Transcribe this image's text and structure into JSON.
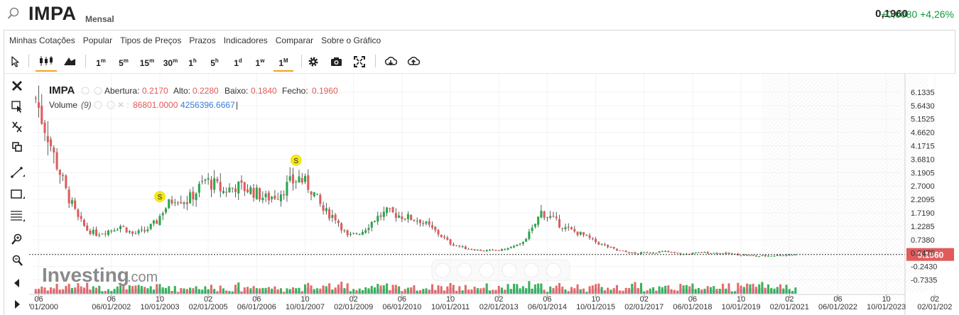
{
  "header": {
    "symbol": "IMPA",
    "period": "Mensal",
    "price": "0,1960",
    "change": "+0,0080",
    "change_pct": "+4,26%",
    "change_color": "#0a9c3a"
  },
  "menu": [
    "Minhas Cotações",
    "Popular",
    "Tipos de Preços",
    "Prazos",
    "Indicadores",
    "Comparar",
    "Sobre o Gráfico"
  ],
  "toolbar": {
    "cursor_icon": "cursor-arrow-icon",
    "chart_type_icons": [
      "candlestick-icon",
      "area-chart-icon"
    ],
    "intervals": [
      {
        "label": "1",
        "sup": "m"
      },
      {
        "label": "5",
        "sup": "m"
      },
      {
        "label": "15",
        "sup": "m"
      },
      {
        "label": "30",
        "sup": "m"
      },
      {
        "label": "1",
        "sup": "h"
      },
      {
        "label": "5",
        "sup": "h"
      },
      {
        "label": "1",
        "sup": "d"
      },
      {
        "label": "1",
        "sup": "w"
      },
      {
        "label": "1",
        "sup": "M"
      }
    ],
    "active_interval": "1M",
    "tool_icons": [
      "gear-icon",
      "camera-icon",
      "fullscreen-icon",
      "download-icon",
      "upload-icon"
    ]
  },
  "sidebar_icons": [
    "close-icon",
    "crosshair-icon",
    "zoom-out-icon",
    "copy-icon",
    "line-tool-icon",
    "rectangle-icon",
    "fib-lines-icon",
    "zoom-in-icon",
    "magnifier-icon",
    "arrow-left-icon",
    "arrow-right-icon"
  ],
  "legend": {
    "symbol": "IMPA",
    "open_label": "Abertura:",
    "open": "0.2170",
    "high_label": "Alto:",
    "high": "0.2280",
    "low_label": "Baixo:",
    "low": "0.1840",
    "close_label": "Fecho:",
    "close": "0.1960",
    "volume_label": "Volume",
    "volume_param": "(9)",
    "volume_value": "86801.0000",
    "volume_ma": "4256396.6667"
  },
  "watermark": {
    "brand": "Investing",
    "suffix": ".com"
  },
  "colors": {
    "up": "#27a84a",
    "down": "#e15b5b",
    "label_bg": "#e15b5b",
    "volume_ma_fill": "#a9c9ec",
    "accent": "#f2a21b"
  },
  "chart_data": {
    "type": "candlestick",
    "interval": "monthly",
    "current_price": 0.196,
    "current_price_label": "0.1960",
    "y_ticks": [
      "6.1335",
      "5.6430",
      "5.1525",
      "4.6620",
      "4.1715",
      "3.6810",
      "3.1905",
      "2.7000",
      "2.2095",
      "1.7190",
      "1.2285",
      "0.7380",
      "0.2475",
      "-0.2430",
      "-0.7335"
    ],
    "ylim": [
      -0.98,
      6.34
    ],
    "x_ticks": [
      {
        "top": "06",
        "bottom": "06/01/2000"
      },
      {
        "top": "06",
        "bottom": "06/01/2002"
      },
      {
        "top": "10",
        "bottom": "10/01/2003"
      },
      {
        "top": "02",
        "bottom": "02/01/2005"
      },
      {
        "top": "06",
        "bottom": "06/01/2006"
      },
      {
        "top": "10",
        "bottom": "10/01/2007"
      },
      {
        "top": "02",
        "bottom": "02/01/2009"
      },
      {
        "top": "06",
        "bottom": "06/01/2010"
      },
      {
        "top": "10",
        "bottom": "10/01/2011"
      },
      {
        "top": "02",
        "bottom": "02/01/2013"
      },
      {
        "top": "06",
        "bottom": "06/01/2014"
      },
      {
        "top": "10",
        "bottom": "10/01/2015"
      },
      {
        "top": "02",
        "bottom": "02/01/2017"
      },
      {
        "top": "06",
        "bottom": "06/01/2018"
      },
      {
        "top": "10",
        "bottom": "10/01/2019"
      },
      {
        "top": "02",
        "bottom": "02/01/2021"
      },
      {
        "top": "06",
        "bottom": "06/01/2022"
      },
      {
        "top": "10",
        "bottom": "10/01/2023"
      },
      {
        "top": "02",
        "bottom": "02/01/202"
      }
    ],
    "xlim": [
      "2000-04",
      "2024-03"
    ],
    "last_data_date": "2021-04",
    "events": [
      {
        "label": "S",
        "date": "2003-10"
      },
      {
        "label": "S",
        "date": "2007-07"
      }
    ],
    "close_path": [
      [
        "2000-05",
        5.9
      ],
      [
        "2000-07",
        5.2
      ],
      [
        "2000-09",
        4.6
      ],
      [
        "2000-11",
        3.8
      ],
      [
        "2001-01",
        3.2
      ],
      [
        "2001-03",
        2.5
      ],
      [
        "2001-05",
        2.0
      ],
      [
        "2001-07",
        1.5
      ],
      [
        "2001-10",
        1.1
      ],
      [
        "2002-01",
        0.95
      ],
      [
        "2002-06",
        1.1
      ],
      [
        "2002-09",
        1.25
      ],
      [
        "2003-01",
        0.95
      ],
      [
        "2003-05",
        1.05
      ],
      [
        "2003-09",
        1.4
      ],
      [
        "2003-11",
        1.8
      ],
      [
        "2004-03",
        2.3
      ],
      [
        "2004-07",
        2.15
      ],
      [
        "2004-10",
        2.5
      ],
      [
        "2005-01",
        2.9
      ],
      [
        "2005-04",
        2.75
      ],
      [
        "2005-07",
        2.5
      ],
      [
        "2005-11",
        2.7
      ],
      [
        "2006-04",
        2.55
      ],
      [
        "2006-09",
        2.25
      ],
      [
        "2007-01",
        2.4
      ],
      [
        "2007-05",
        2.8
      ],
      [
        "2007-08",
        3.0
      ],
      [
        "2007-12",
        2.6
      ],
      [
        "2008-04",
        1.8
      ],
      [
        "2008-08",
        1.55
      ],
      [
        "2008-12",
        0.85
      ],
      [
        "2009-05",
        1.05
      ],
      [
        "2009-09",
        1.5
      ],
      [
        "2010-01",
        1.75
      ],
      [
        "2010-06",
        1.6
      ],
      [
        "2010-12",
        1.45
      ],
      [
        "2011-05",
        1.05
      ],
      [
        "2011-10",
        0.6
      ],
      [
        "2012-03",
        0.42
      ],
      [
        "2012-09",
        0.33
      ],
      [
        "2013-03",
        0.36
      ],
      [
        "2013-09",
        0.55
      ],
      [
        "2014-01",
        1.1
      ],
      [
        "2014-04",
        1.75
      ],
      [
        "2014-07",
        1.55
      ],
      [
        "2014-12",
        1.15
      ],
      [
        "2015-05",
        0.95
      ],
      [
        "2015-11",
        0.6
      ],
      [
        "2016-05",
        0.35
      ],
      [
        "2016-11",
        0.22
      ],
      [
        "2017-03",
        0.27
      ],
      [
        "2017-09",
        0.3
      ],
      [
        "2018-03",
        0.2
      ],
      [
        "2018-09",
        0.27
      ],
      [
        "2019-06",
        0.22
      ],
      [
        "2020-03",
        0.13
      ],
      [
        "2020-10",
        0.17
      ],
      [
        "2021-04",
        0.196
      ]
    ],
    "volume": {
      "label": "Volume (9)",
      "last": 86801,
      "ma": 4256396.6667
    }
  }
}
